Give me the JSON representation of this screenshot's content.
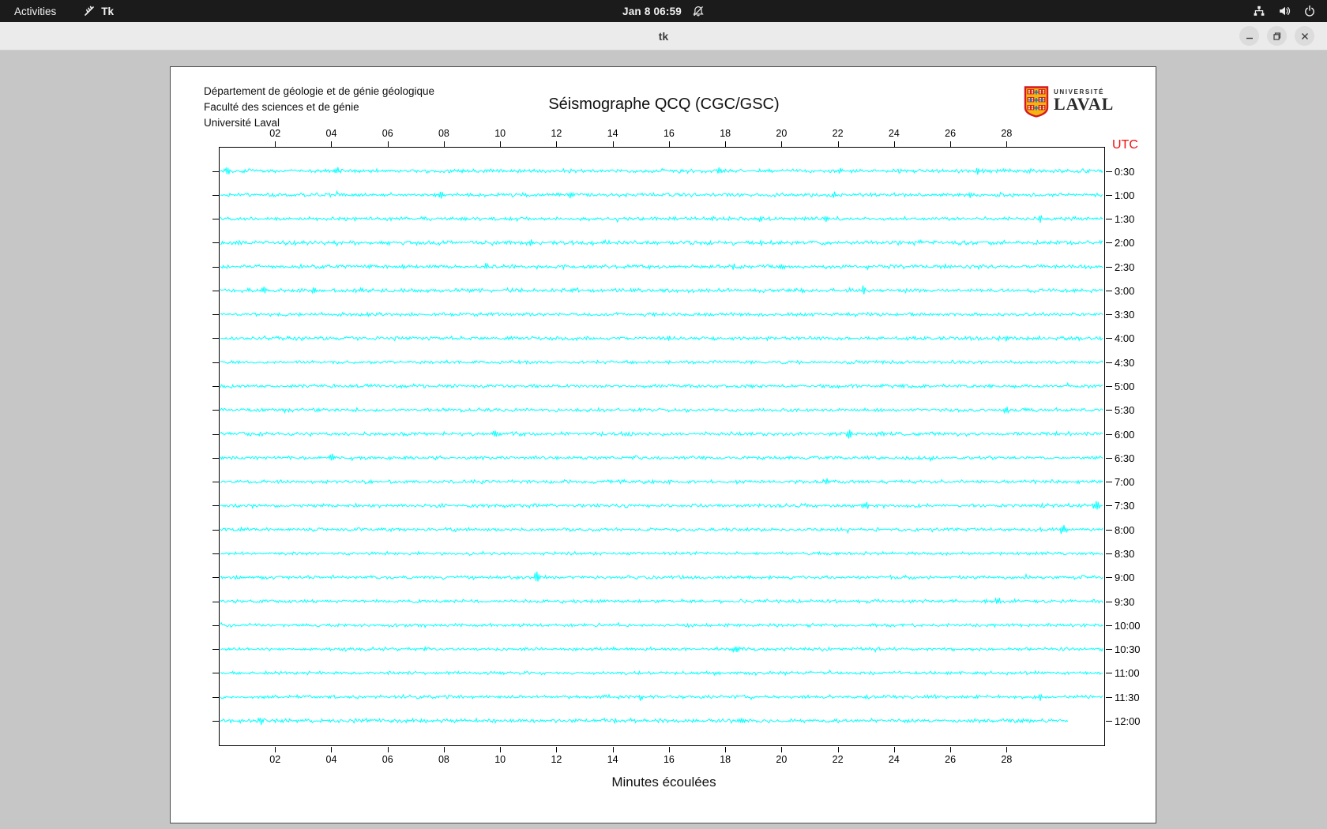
{
  "top_bar": {
    "activities_label": "Activities",
    "app_name": "Tk",
    "clock": "Jan 8  06:59"
  },
  "window": {
    "title": "tk"
  },
  "seismograph": {
    "header_lines": [
      "Département de géologie et de génie géologique",
      "Faculté des sciences et de génie",
      "Université Laval"
    ],
    "title": "Séismographe QCQ (CGC/GSC)",
    "logo": {
      "university": "UNIVERSITÉ",
      "name": "LAVAL"
    },
    "utc_label": "UTC",
    "xlabel": "Minutes écoulées"
  },
  "colors": {
    "trace": "#00ffff",
    "utc_label": "#f20d0d",
    "topbar_bg": "#1b1b1b",
    "titlebar_bg": "#ebebeb",
    "desktop_bg": "#c6c6c6",
    "laval_gold": "#f5b50f",
    "laval_red": "#d41920",
    "laval_blue": "#2176bd"
  },
  "chart_data": {
    "type": "line",
    "title": "Séismographe QCQ (CGC/GSC)",
    "xlabel": "Minutes écoulées",
    "ylabel_right": "UTC",
    "x_range_minutes": [
      0,
      31.5
    ],
    "x_ticks": [
      "02",
      "04",
      "06",
      "08",
      "10",
      "12",
      "14",
      "16",
      "18",
      "20",
      "22",
      "24",
      "26",
      "28"
    ],
    "trace_color": "#00ffff",
    "rows": [
      {
        "label": "0:30",
        "noise": 1.15,
        "spikes": [
          [
            0.3,
            6
          ],
          [
            4.2,
            5
          ],
          [
            17.8,
            4
          ],
          [
            22.1,
            4
          ],
          [
            27.0,
            3
          ]
        ]
      },
      {
        "label": "1:00",
        "noise": 1.05,
        "spikes": [
          [
            7.9,
            5
          ],
          [
            12.5,
            4
          ],
          [
            21.9,
            4
          ],
          [
            26.7,
            3
          ]
        ]
      },
      {
        "label": "1:30",
        "noise": 1.05,
        "spikes": [
          [
            19.2,
            4
          ],
          [
            21.6,
            4
          ],
          [
            29.2,
            5
          ]
        ]
      },
      {
        "label": "2:00",
        "noise": 1.25,
        "spikes": [
          [
            11.1,
            5
          ],
          [
            19.3,
            3
          ]
        ]
      },
      {
        "label": "2:30",
        "noise": 1.1,
        "spikes": [
          [
            9.5,
            4
          ],
          [
            15.3,
            3
          ],
          [
            18.3,
            4
          ],
          [
            20.0,
            4
          ]
        ]
      },
      {
        "label": "3:00",
        "noise": 1.15,
        "spikes": [
          [
            1.6,
            4
          ],
          [
            3.4,
            4
          ],
          [
            5.1,
            3
          ],
          [
            22.9,
            5
          ]
        ]
      },
      {
        "label": "3:30",
        "noise": 1.0,
        "spikes": []
      },
      {
        "label": "4:00",
        "noise": 1.05,
        "spikes": [
          [
            16.0,
            4
          ],
          [
            28.0,
            5
          ]
        ]
      },
      {
        "label": "4:30",
        "noise": 0.9,
        "spikes": []
      },
      {
        "label": "5:00",
        "noise": 1.0,
        "spikes": []
      },
      {
        "label": "5:30",
        "noise": 1.0,
        "spikes": [
          [
            28.0,
            5
          ]
        ]
      },
      {
        "label": "6:00",
        "noise": 1.1,
        "spikes": [
          [
            9.8,
            5
          ],
          [
            22.4,
            7
          ],
          [
            29.8,
            3
          ]
        ]
      },
      {
        "label": "6:30",
        "noise": 1.0,
        "spikes": [
          [
            4.0,
            5
          ],
          [
            25.3,
            3
          ]
        ]
      },
      {
        "label": "7:00",
        "noise": 1.0,
        "spikes": [
          [
            21.6,
            4
          ]
        ]
      },
      {
        "label": "7:30",
        "noise": 1.05,
        "spikes": [
          [
            23.0,
            5
          ],
          [
            31.2,
            7
          ]
        ]
      },
      {
        "label": "8:00",
        "noise": 1.0,
        "spikes": [
          [
            30.0,
            7
          ]
        ]
      },
      {
        "label": "8:30",
        "noise": 0.9,
        "spikes": []
      },
      {
        "label": "9:00",
        "noise": 1.0,
        "spikes": [
          [
            11.3,
            8
          ]
        ]
      },
      {
        "label": "9:30",
        "noise": 0.95,
        "spikes": [
          [
            27.7,
            5
          ]
        ]
      },
      {
        "label": "10:00",
        "noise": 0.9,
        "spikes": []
      },
      {
        "label": "10:30",
        "noise": 0.95,
        "spikes": [
          [
            18.4,
            5
          ]
        ]
      },
      {
        "label": "11:00",
        "noise": 0.95,
        "spikes": []
      },
      {
        "label": "11:30",
        "noise": 1.0,
        "spikes": [
          [
            15.0,
            4
          ],
          [
            29.2,
            4
          ]
        ]
      },
      {
        "label": "12:00",
        "noise": 1.15,
        "spikes": [
          [
            1.5,
            5
          ],
          [
            18.6,
            4
          ]
        ],
        "end": 30.2
      }
    ]
  }
}
